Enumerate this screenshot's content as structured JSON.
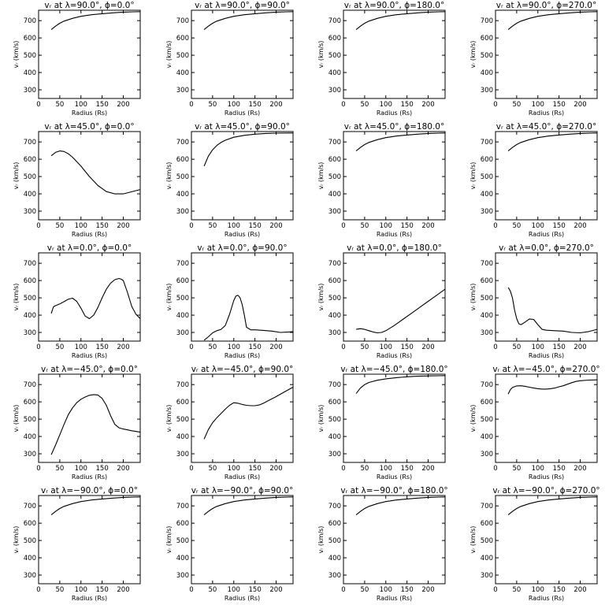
{
  "chart_data": [
    {
      "type": "line",
      "title": "vᵣ at λ=90.0°, ϕ=0.0°",
      "xlabel": "Radius (Rs)",
      "ylabel": "vᵣ (km/s)",
      "xlim": [
        0,
        240
      ],
      "ylim": [
        250,
        760
      ],
      "xticks": [
        0,
        50,
        100,
        150,
        200
      ],
      "yticks": [
        300,
        400,
        500,
        600,
        700
      ],
      "x": [
        30,
        40,
        50,
        60,
        80,
        100,
        125,
        150,
        175,
        200,
        225,
        240
      ],
      "values": [
        648,
        668,
        685,
        697,
        713,
        725,
        734,
        740,
        745,
        749,
        751,
        752
      ]
    },
    {
      "type": "line",
      "title": "vᵣ at λ=90.0°, ϕ=90.0°",
      "xlabel": "Radius (Rs)",
      "ylabel": "vᵣ (km/s)",
      "xlim": [
        0,
        240
      ],
      "ylim": [
        250,
        760
      ],
      "xticks": [
        0,
        50,
        100,
        150,
        200
      ],
      "yticks": [
        300,
        400,
        500,
        600,
        700
      ],
      "x": [
        30,
        40,
        50,
        60,
        80,
        100,
        125,
        150,
        175,
        200,
        225,
        240
      ],
      "values": [
        648,
        668,
        685,
        697,
        713,
        725,
        734,
        740,
        745,
        749,
        751,
        752
      ]
    },
    {
      "type": "line",
      "title": "vᵣ at λ=90.0°, ϕ=180.0°",
      "xlabel": "Radius (Rs)",
      "ylabel": "vᵣ (km/s)",
      "xlim": [
        0,
        240
      ],
      "ylim": [
        250,
        760
      ],
      "xticks": [
        0,
        50,
        100,
        150,
        200
      ],
      "yticks": [
        300,
        400,
        500,
        600,
        700
      ],
      "x": [
        30,
        40,
        50,
        60,
        80,
        100,
        125,
        150,
        175,
        200,
        225,
        240
      ],
      "values": [
        648,
        668,
        685,
        697,
        713,
        725,
        734,
        740,
        745,
        749,
        751,
        752
      ]
    },
    {
      "type": "line",
      "title": "vᵣ at λ=90.0°, ϕ=270.0°",
      "xlabel": "Radius (Rs)",
      "ylabel": "vᵣ (km/s)",
      "xlim": [
        0,
        240
      ],
      "ylim": [
        250,
        760
      ],
      "xticks": [
        0,
        50,
        100,
        150,
        200
      ],
      "yticks": [
        300,
        400,
        500,
        600,
        700
      ],
      "x": [
        30,
        40,
        50,
        60,
        80,
        100,
        125,
        150,
        175,
        200,
        225,
        240
      ],
      "values": [
        648,
        668,
        685,
        697,
        713,
        725,
        734,
        740,
        745,
        749,
        751,
        752
      ]
    },
    {
      "type": "line",
      "title": "vᵣ at λ=45.0°, ϕ=0.0°",
      "xlabel": "Radius (Rs)",
      "ylabel": "vᵣ (km/s)",
      "xlim": [
        0,
        240
      ],
      "ylim": [
        250,
        760
      ],
      "xticks": [
        0,
        50,
        100,
        150,
        200
      ],
      "yticks": [
        300,
        400,
        500,
        600,
        700
      ],
      "x": [
        30,
        40,
        50,
        60,
        70,
        80,
        100,
        120,
        140,
        160,
        180,
        200,
        220,
        240
      ],
      "values": [
        620,
        640,
        648,
        645,
        632,
        612,
        560,
        500,
        448,
        413,
        400,
        400,
        412,
        425
      ]
    },
    {
      "type": "line",
      "title": "vᵣ at λ=45.0°, ϕ=90.0°",
      "xlabel": "Radius (Rs)",
      "ylabel": "vᵣ (km/s)",
      "xlim": [
        0,
        240
      ],
      "ylim": [
        250,
        760
      ],
      "xticks": [
        0,
        50,
        100,
        150,
        200
      ],
      "yticks": [
        300,
        400,
        500,
        600,
        700
      ],
      "x": [
        30,
        40,
        50,
        60,
        70,
        80,
        100,
        125,
        150,
        175,
        200,
        240
      ],
      "values": [
        560,
        618,
        655,
        680,
        697,
        710,
        727,
        738,
        745,
        749,
        751,
        752
      ]
    },
    {
      "type": "line",
      "title": "vᵣ at λ=45.0°, ϕ=180.0°",
      "xlabel": "Radius (Rs)",
      "ylabel": "vᵣ (km/s)",
      "xlim": [
        0,
        240
      ],
      "ylim": [
        250,
        760
      ],
      "xticks": [
        0,
        50,
        100,
        150,
        200
      ],
      "yticks": [
        300,
        400,
        500,
        600,
        700
      ],
      "x": [
        30,
        40,
        50,
        60,
        80,
        100,
        125,
        150,
        175,
        200,
        225,
        240
      ],
      "values": [
        648,
        668,
        685,
        697,
        713,
        725,
        734,
        740,
        745,
        749,
        751,
        752
      ]
    },
    {
      "type": "line",
      "title": "vᵣ at λ=45.0°, ϕ=270.0°",
      "xlabel": "Radius (Rs)",
      "ylabel": "vᵣ (km/s)",
      "xlim": [
        0,
        240
      ],
      "ylim": [
        250,
        760
      ],
      "xticks": [
        0,
        50,
        100,
        150,
        200
      ],
      "yticks": [
        300,
        400,
        500,
        600,
        700
      ],
      "x": [
        30,
        40,
        50,
        60,
        80,
        100,
        125,
        150,
        175,
        200,
        225,
        240
      ],
      "values": [
        648,
        668,
        685,
        697,
        713,
        725,
        734,
        740,
        745,
        749,
        751,
        752
      ]
    },
    {
      "type": "line",
      "title": "vᵣ at λ=0.0°, ϕ=0.0°",
      "xlabel": "Radius (Rs)",
      "ylabel": "vᵣ (km/s)",
      "xlim": [
        0,
        240
      ],
      "ylim": [
        250,
        760
      ],
      "xticks": [
        0,
        50,
        100,
        150,
        200
      ],
      "yticks": [
        300,
        400,
        500,
        600,
        700
      ],
      "x": [
        30,
        35,
        40,
        50,
        60,
        70,
        80,
        90,
        100,
        110,
        120,
        130,
        140,
        150,
        160,
        170,
        180,
        190,
        195,
        200,
        210,
        220,
        230,
        240
      ],
      "values": [
        410,
        448,
        455,
        465,
        478,
        492,
        498,
        480,
        440,
        395,
        380,
        400,
        445,
        500,
        550,
        585,
        605,
        612,
        608,
        600,
        530,
        450,
        405,
        380
      ]
    },
    {
      "type": "line",
      "title": "vᵣ at λ=0.0°, ϕ=90.0°",
      "xlabel": "Radius (Rs)",
      "ylabel": "vᵣ (km/s)",
      "xlim": [
        0,
        240
      ],
      "ylim": [
        250,
        760
      ],
      "xticks": [
        0,
        50,
        100,
        150,
        200
      ],
      "yticks": [
        300,
        400,
        500,
        600,
        700
      ],
      "x": [
        30,
        40,
        50,
        60,
        70,
        80,
        90,
        100,
        105,
        110,
        115,
        120,
        125,
        130,
        140,
        150,
        170,
        190,
        210,
        230,
        240
      ],
      "values": [
        255,
        275,
        298,
        310,
        318,
        340,
        405,
        485,
        510,
        515,
        500,
        460,
        400,
        330,
        315,
        315,
        312,
        308,
        300,
        303,
        305
      ]
    },
    {
      "type": "line",
      "title": "vᵣ at λ=0.0°, ϕ=180.0°",
      "xlabel": "Radius (Rs)",
      "ylabel": "vᵣ (km/s)",
      "xlim": [
        0,
        240
      ],
      "ylim": [
        250,
        760
      ],
      "xticks": [
        0,
        50,
        100,
        150,
        200
      ],
      "yticks": [
        300,
        400,
        500,
        600,
        700
      ],
      "x": [
        30,
        40,
        50,
        60,
        70,
        80,
        90,
        100,
        120,
        140,
        160,
        180,
        200,
        220,
        240
      ],
      "values": [
        318,
        322,
        318,
        310,
        303,
        298,
        300,
        310,
        340,
        375,
        410,
        445,
        480,
        515,
        550
      ]
    },
    {
      "type": "line",
      "title": "vᵣ at λ=0.0°, ϕ=270.0°",
      "xlabel": "Radius (Rs)",
      "ylabel": "vᵣ (km/s)",
      "xlim": [
        0,
        240
      ],
      "ylim": [
        250,
        760
      ],
      "xticks": [
        0,
        50,
        100,
        150,
        200
      ],
      "yticks": [
        300,
        400,
        500,
        600,
        700
      ],
      "x": [
        30,
        35,
        40,
        45,
        50,
        55,
        60,
        65,
        70,
        80,
        90,
        100,
        110,
        120,
        140,
        160,
        180,
        200,
        220,
        240
      ],
      "values": [
        560,
        540,
        500,
        430,
        380,
        350,
        345,
        352,
        360,
        378,
        375,
        345,
        318,
        313,
        310,
        308,
        300,
        298,
        305,
        318
      ]
    },
    {
      "type": "line",
      "title": "vᵣ at λ=−45.0°, ϕ=0.0°",
      "xlabel": "Radius (Rs)",
      "ylabel": "vᵣ (km/s)",
      "xlim": [
        0,
        240
      ],
      "ylim": [
        250,
        760
      ],
      "xticks": [
        0,
        50,
        100,
        150,
        200
      ],
      "yticks": [
        300,
        400,
        500,
        600,
        700
      ],
      "x": [
        30,
        40,
        50,
        60,
        70,
        80,
        90,
        100,
        110,
        120,
        130,
        140,
        150,
        160,
        170,
        180,
        190,
        200,
        220,
        240
      ],
      "values": [
        295,
        350,
        410,
        470,
        525,
        565,
        595,
        615,
        628,
        638,
        642,
        640,
        620,
        580,
        520,
        470,
        450,
        443,
        433,
        425
      ]
    },
    {
      "type": "line",
      "title": "vᵣ at λ=−45.0°, ϕ=90.0°",
      "xlabel": "Radius (Rs)",
      "ylabel": "vᵣ (km/s)",
      "xlim": [
        0,
        240
      ],
      "ylim": [
        250,
        760
      ],
      "xticks": [
        0,
        50,
        100,
        150,
        200
      ],
      "yticks": [
        300,
        400,
        500,
        600,
        700
      ],
      "x": [
        30,
        40,
        50,
        60,
        70,
        80,
        90,
        100,
        110,
        120,
        130,
        140,
        150,
        160,
        170,
        180,
        200,
        220,
        240
      ],
      "values": [
        385,
        440,
        480,
        508,
        533,
        558,
        580,
        595,
        592,
        585,
        580,
        578,
        578,
        582,
        592,
        605,
        630,
        658,
        685
      ]
    },
    {
      "type": "line",
      "title": "vᵣ at λ=−45.0°, ϕ=180.0°",
      "xlabel": "Radius (Rs)",
      "ylabel": "vᵣ (km/s)",
      "xlim": [
        0,
        240
      ],
      "ylim": [
        250,
        760
      ],
      "xticks": [
        0,
        50,
        100,
        150,
        200
      ],
      "yticks": [
        300,
        400,
        500,
        600,
        700
      ],
      "x": [
        30,
        40,
        50,
        60,
        80,
        100,
        125,
        150,
        175,
        200,
        225,
        240
      ],
      "values": [
        648,
        680,
        700,
        712,
        725,
        733,
        740,
        745,
        748,
        750,
        751,
        752
      ]
    },
    {
      "type": "line",
      "title": "vᵣ at λ=−45.0°, ϕ=270.0°",
      "xlabel": "Radius (Rs)",
      "ylabel": "vᵣ (km/s)",
      "xlim": [
        0,
        240
      ],
      "ylim": [
        250,
        760
      ],
      "xticks": [
        0,
        50,
        100,
        150,
        200
      ],
      "yticks": [
        300,
        400,
        500,
        600,
        700
      ],
      "x": [
        30,
        35,
        40,
        50,
        60,
        70,
        80,
        90,
        100,
        110,
        120,
        130,
        140,
        150,
        160,
        170,
        180,
        190,
        200,
        220,
        240
      ],
      "values": [
        645,
        670,
        683,
        692,
        693,
        690,
        685,
        680,
        676,
        674,
        674,
        676,
        680,
        687,
        693,
        702,
        711,
        718,
        722,
        726,
        727
      ]
    },
    {
      "type": "line",
      "title": "vᵣ at λ=−90.0°, ϕ=0.0°",
      "xlabel": "Radius (Rs)",
      "ylabel": "vᵣ (km/s)",
      "xlim": [
        0,
        240
      ],
      "ylim": [
        250,
        760
      ],
      "xticks": [
        0,
        50,
        100,
        150,
        200
      ],
      "yticks": [
        300,
        400,
        500,
        600,
        700
      ],
      "x": [
        30,
        40,
        50,
        60,
        80,
        100,
        125,
        150,
        175,
        200,
        225,
        240
      ],
      "values": [
        648,
        668,
        685,
        697,
        713,
        725,
        734,
        740,
        745,
        749,
        751,
        752
      ]
    },
    {
      "type": "line",
      "title": "vᵣ at λ=−90.0°, ϕ=90.0°",
      "xlabel": "Radius (Rs)",
      "ylabel": "vᵣ (km/s)",
      "xlim": [
        0,
        240
      ],
      "ylim": [
        250,
        760
      ],
      "xticks": [
        0,
        50,
        100,
        150,
        200
      ],
      "yticks": [
        300,
        400,
        500,
        600,
        700
      ],
      "x": [
        30,
        40,
        50,
        60,
        80,
        100,
        125,
        150,
        175,
        200,
        225,
        240
      ],
      "values": [
        648,
        668,
        685,
        697,
        713,
        725,
        734,
        740,
        745,
        749,
        751,
        752
      ]
    },
    {
      "type": "line",
      "title": "vᵣ at λ=−90.0°, ϕ=180.0°",
      "xlabel": "Radius (Rs)",
      "ylabel": "vᵣ (km/s)",
      "xlim": [
        0,
        240
      ],
      "ylim": [
        250,
        760
      ],
      "xticks": [
        0,
        50,
        100,
        150,
        200
      ],
      "yticks": [
        300,
        400,
        500,
        600,
        700
      ],
      "x": [
        30,
        40,
        50,
        60,
        80,
        100,
        125,
        150,
        175,
        200,
        225,
        240
      ],
      "values": [
        648,
        668,
        685,
        697,
        713,
        725,
        734,
        740,
        745,
        749,
        751,
        752
      ]
    },
    {
      "type": "line",
      "title": "vᵣ at λ=−90.0°, ϕ=270.0°",
      "xlabel": "Radius (Rs)",
      "ylabel": "vᵣ (km/s)",
      "xlim": [
        0,
        240
      ],
      "ylim": [
        250,
        760
      ],
      "xticks": [
        0,
        50,
        100,
        150,
        200
      ],
      "yticks": [
        300,
        400,
        500,
        600,
        700
      ],
      "x": [
        30,
        40,
        50,
        60,
        80,
        100,
        125,
        150,
        175,
        200,
        225,
        240
      ],
      "values": [
        648,
        668,
        685,
        697,
        713,
        725,
        734,
        740,
        745,
        749,
        751,
        752
      ]
    }
  ]
}
